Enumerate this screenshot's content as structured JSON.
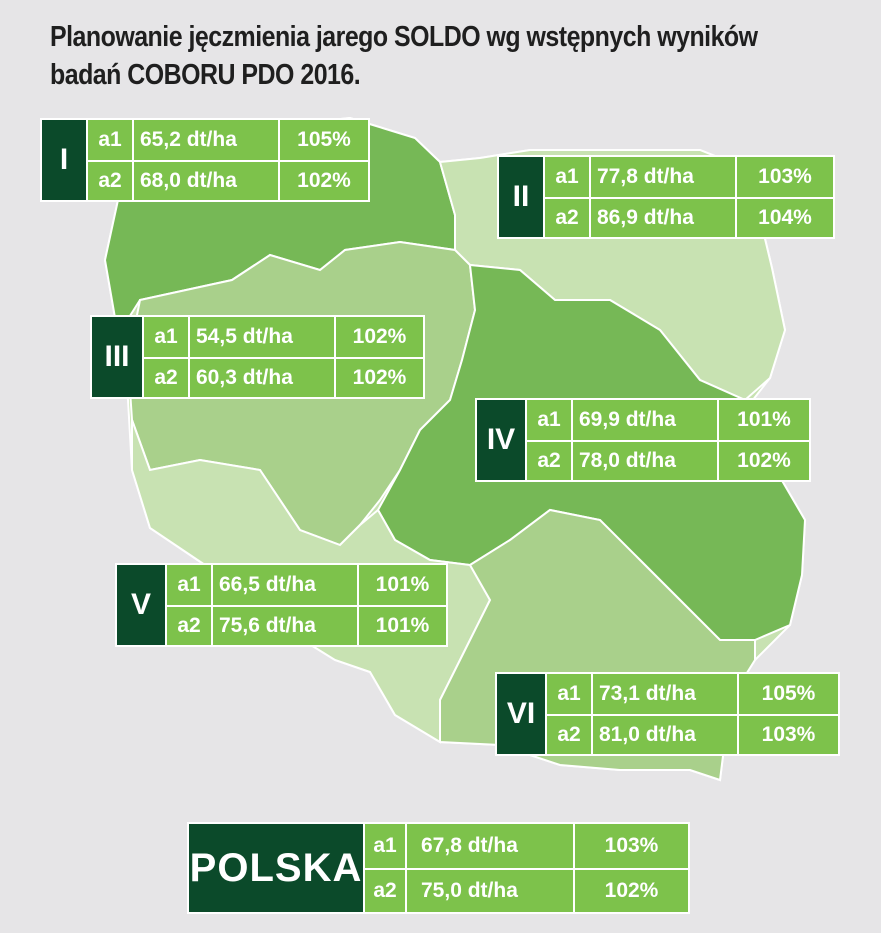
{
  "title": {
    "line1": "Planowanie jęczmienia jarego SOLDO wg wstępnych wyników",
    "line2": "badań COBORU PDO 2016."
  },
  "colors": {
    "background": "#e6e5e7",
    "dark_green": "#0b4a2a",
    "cell_green": "#7dc24b",
    "region_green_medium": "#76b856",
    "region_green_light": "#a9d08b",
    "region_green_pale": "#c8e2b2"
  },
  "regions": [
    {
      "label": "I",
      "rows": [
        {
          "code": "a1",
          "yield": "65,2 dt/ha",
          "pct": "105%"
        },
        {
          "code": "a2",
          "yield": "68,0 dt/ha",
          "pct": "102%"
        }
      ]
    },
    {
      "label": "II",
      "rows": [
        {
          "code": "a1",
          "yield": "77,8 dt/ha",
          "pct": "103%"
        },
        {
          "code": "a2",
          "yield": "86,9 dt/ha",
          "pct": "104%"
        }
      ]
    },
    {
      "label": "III",
      "rows": [
        {
          "code": "a1",
          "yield": "54,5 dt/ha",
          "pct": "102%"
        },
        {
          "code": "a2",
          "yield": "60,3 dt/ha",
          "pct": "102%"
        }
      ]
    },
    {
      "label": "IV",
      "rows": [
        {
          "code": "a1",
          "yield": "69,9 dt/ha",
          "pct": "101%"
        },
        {
          "code": "a2",
          "yield": "78,0 dt/ha",
          "pct": "102%"
        }
      ]
    },
    {
      "label": "V",
      "rows": [
        {
          "code": "a1",
          "yield": "66,5 dt/ha",
          "pct": "101%"
        },
        {
          "code": "a2",
          "yield": "75,6 dt/ha",
          "pct": "101%"
        }
      ]
    },
    {
      "label": "VI",
      "rows": [
        {
          "code": "a1",
          "yield": "73,1 dt/ha",
          "pct": "105%"
        },
        {
          "code": "a2",
          "yield": "81,0 dt/ha",
          "pct": "103%"
        }
      ]
    }
  ],
  "polska": {
    "label": "POLSKA",
    "rows": [
      {
        "code": "a1",
        "yield": "67,8 dt/ha",
        "pct": "103%"
      },
      {
        "code": "a2",
        "yield": "75,0 dt/ha",
        "pct": "102%"
      }
    ]
  }
}
